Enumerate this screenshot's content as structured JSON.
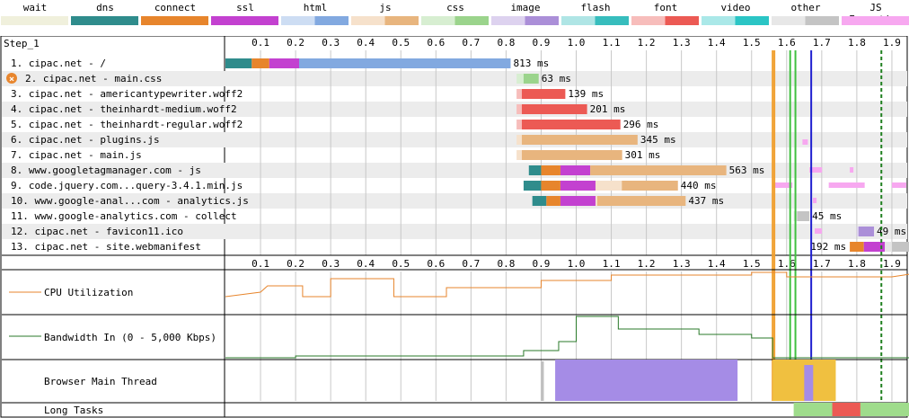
{
  "legend": [
    {
      "label": "wait",
      "color": "#f0f0dc"
    },
    {
      "label": "dns",
      "color": "#2f8c8c"
    },
    {
      "label": "connect",
      "color": "#e7852c"
    },
    {
      "label": "ssl",
      "color": "#c341d0"
    },
    {
      "label": "html",
      "color": "#82a9e0"
    },
    {
      "label": "js",
      "color": "#e8b57e"
    },
    {
      "label": "css",
      "color": "#9bd48c"
    },
    {
      "label": "image",
      "color": "#ab8fd8"
    },
    {
      "label": "flash",
      "color": "#37bdbd"
    },
    {
      "label": "font",
      "color": "#ec5a54"
    },
    {
      "label": "video",
      "color": "#2bc5c5"
    },
    {
      "label": "other",
      "color": "#c4c4c4"
    },
    {
      "label": "JS Execution",
      "color": "#f7a8f0"
    }
  ],
  "step_label": "Step_1",
  "ticks": [
    "0.1",
    "0.2",
    "0.3",
    "0.4",
    "0.5",
    "0.6",
    "0.7",
    "0.8",
    "0.9",
    "1.0",
    "1.1",
    "1.2",
    "1.3",
    "1.4",
    "1.5",
    "1.6",
    "1.7",
    "1.8",
    "1.9"
  ],
  "requests": [
    {
      "label": "1. cipac.net - /",
      "duration": "813 ms",
      "type": "html",
      "start": 0.0,
      "dns_end": 0.075,
      "connect_end": 0.125,
      "ssl_end": 0.21,
      "first_byte": 0.21,
      "end": 0.813,
      "error": false
    },
    {
      "label": "2. cipac.net - main.css",
      "duration": "63 ms",
      "type": "css",
      "start": 0.83,
      "dns_end": 0.83,
      "connect_end": 0.83,
      "ssl_end": 0.83,
      "first_byte": 0.85,
      "end": 0.893,
      "error": true
    },
    {
      "label": "3. cipac.net - americantypewriter.woff2",
      "duration": "139 ms",
      "type": "font",
      "start": 0.83,
      "dns_end": 0.83,
      "connect_end": 0.83,
      "ssl_end": 0.83,
      "first_byte": 0.845,
      "end": 0.969,
      "error": false
    },
    {
      "label": "4. cipac.net - theinhardt-medium.woff2",
      "duration": "201 ms",
      "type": "font",
      "start": 0.83,
      "dns_end": 0.83,
      "connect_end": 0.83,
      "ssl_end": 0.83,
      "first_byte": 0.845,
      "end": 1.031,
      "error": false
    },
    {
      "label": "5. cipac.net - theinhardt-regular.woff2",
      "duration": "296 ms",
      "type": "font",
      "start": 0.83,
      "dns_end": 0.83,
      "connect_end": 0.83,
      "ssl_end": 0.83,
      "first_byte": 0.845,
      "end": 1.126,
      "error": false
    },
    {
      "label": "6. cipac.net - plugins.js",
      "duration": "345 ms",
      "type": "js",
      "start": 0.83,
      "dns_end": 0.83,
      "connect_end": 0.83,
      "ssl_end": 0.83,
      "first_byte": 0.845,
      "end": 1.175,
      "error": false
    },
    {
      "label": "7. cipac.net - main.js",
      "duration": "301 ms",
      "type": "js",
      "start": 0.83,
      "dns_end": 0.83,
      "connect_end": 0.83,
      "ssl_end": 0.83,
      "first_byte": 0.845,
      "end": 1.131,
      "error": false
    },
    {
      "label": "8. www.googletagmanager.com - js",
      "duration": "563 ms",
      "type": "js",
      "start": 0.865,
      "dns_end": 0.9,
      "connect_end": 0.955,
      "ssl_end": 1.04,
      "first_byte": 1.04,
      "end": 1.428,
      "error": false
    },
    {
      "label": "9. code.jquery.com...query-3.4.1.min.js",
      "duration": "440 ms",
      "type": "js",
      "start": 0.85,
      "dns_end": 0.9,
      "connect_end": 0.955,
      "ssl_end": 1.055,
      "first_byte": 1.13,
      "end": 1.29,
      "error": false
    },
    {
      "label": "10. www.google-anal...com - analytics.js",
      "duration": "437 ms",
      "type": "js",
      "start": 0.875,
      "dns_end": 0.915,
      "connect_end": 0.955,
      "ssl_end": 1.055,
      "first_byte": 1.06,
      "end": 1.312,
      "error": false
    },
    {
      "label": "11. www.google-analytics.com - collect",
      "duration": "45 ms",
      "type": "other",
      "start": 1.62,
      "dns_end": 1.62,
      "connect_end": 1.62,
      "ssl_end": 1.62,
      "first_byte": 1.63,
      "end": 1.665,
      "error": false
    },
    {
      "label": "12. cipac.net - favicon11.ico",
      "duration": "49 ms",
      "type": "image",
      "start": 1.8,
      "dns_end": 1.8,
      "connect_end": 1.8,
      "ssl_end": 1.8,
      "first_byte": 1.805,
      "end": 1.849,
      "error": false
    },
    {
      "label": "13. cipac.net - site.webmanifest",
      "duration": "192 ms",
      "type": "other",
      "start": 1.78,
      "dns_end": 1.78,
      "connect_end": 1.82,
      "ssl_end": 1.88,
      "first_byte": 1.9,
      "end": 1.972,
      "error": false
    }
  ],
  "markers": [
    {
      "t": 1.56,
      "color": "#f0a030"
    },
    {
      "t": 1.565,
      "color": "#f0a030"
    },
    {
      "t": 1.61,
      "color": "#40c040"
    },
    {
      "t": 1.625,
      "color": "#40c040"
    },
    {
      "t": 1.67,
      "color": "#2020d0"
    },
    {
      "t": 1.87,
      "color": "#208020"
    }
  ],
  "panels": {
    "cpu_label": "CPU Utilization",
    "bandwidth_label": "Bandwidth In (0 - 5,000 Kbps)",
    "main_thread_label": "Browser Main Thread",
    "long_tasks_label": "Long Tasks"
  }
}
